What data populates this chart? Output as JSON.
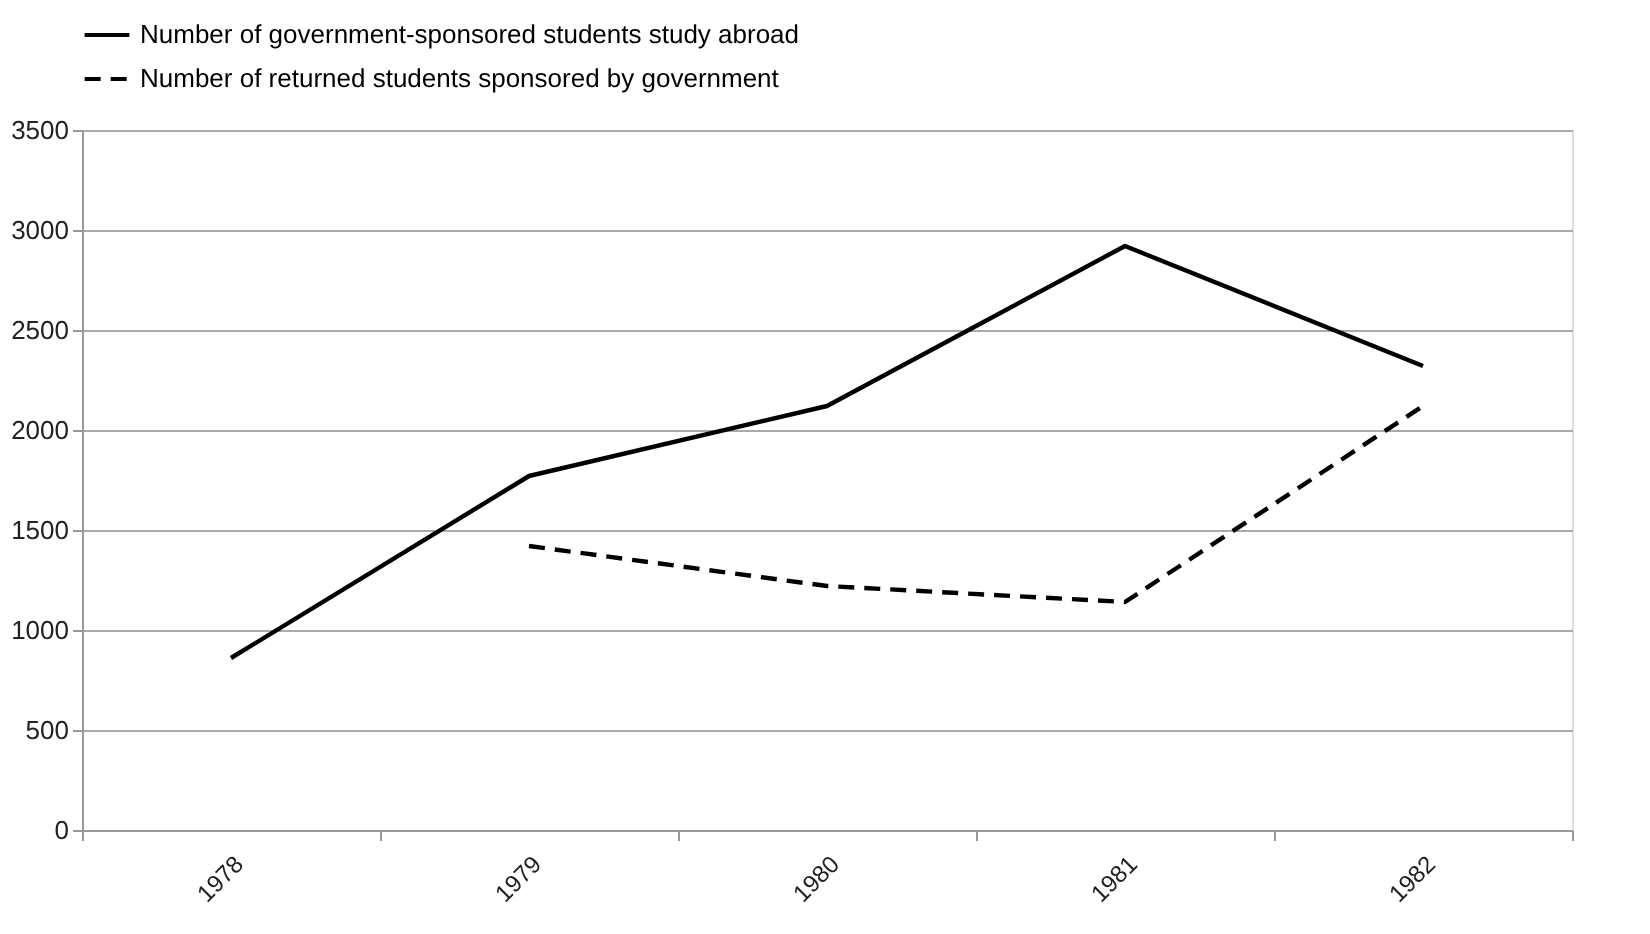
{
  "chart_data": {
    "type": "line",
    "categories": [
      "1978",
      "1979",
      "1980",
      "1981",
      "1982"
    ],
    "series": [
      {
        "name": "Number of government-sponsored students study abroad",
        "color": "#000000",
        "line_style": "solid",
        "values": [
          860,
          1770,
          2120,
          2920,
          2320
        ]
      },
      {
        "name": "Number of returned students sponsored by government",
        "color": "#000000",
        "line_style": "dashed",
        "values": [
          null,
          1420,
          1220,
          1140,
          2120
        ]
      }
    ],
    "ylim": [
      0,
      3500
    ],
    "yticks": [
      0,
      500,
      1000,
      1500,
      2000,
      2500,
      3000,
      3500
    ],
    "grid": "y",
    "legend": "top",
    "marker": "none"
  }
}
